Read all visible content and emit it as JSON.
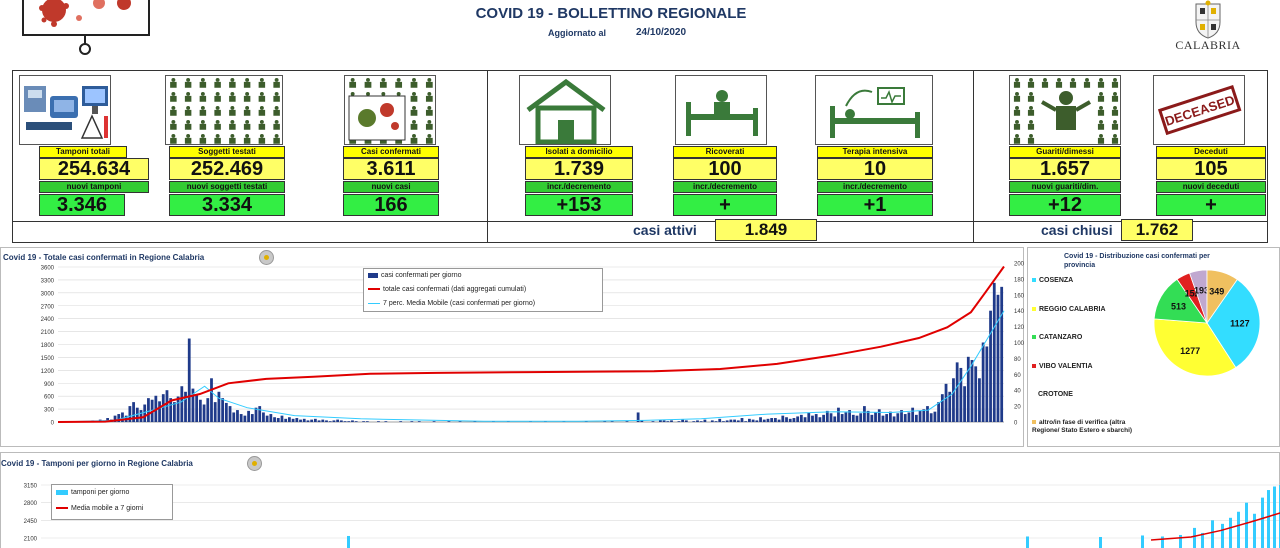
{
  "header": {
    "title": "COVID 19 - BOLLETTINO REGIONALE",
    "updated_label": "Aggiornato al",
    "updated_date": "24/10/2020",
    "region_name": "CALABRIA"
  },
  "kpis": {
    "tamponi": {
      "label": "Tamponi totali",
      "value": "254.634",
      "new_label": "nuovi tamponi",
      "new_value": "3.346"
    },
    "soggetti": {
      "label": "Soggetti testati",
      "value": "252.469",
      "new_label": "nuovi soggetti testati",
      "new_value": "3.334"
    },
    "casi": {
      "label": "Casi confermati",
      "value": "3.611",
      "new_label": "nuovi casi",
      "new_value": "166"
    },
    "isolati": {
      "label": "Isolati a domicilio",
      "value": "1.739",
      "new_label": "incr./decremento",
      "new_value": "+153"
    },
    "ricoverati": {
      "label": "Ricoverati",
      "value": "100",
      "new_label": "incr./decremento",
      "new_value": "+"
    },
    "terapia": {
      "label": "Terapia intensiva",
      "value": "10",
      "new_label": "incr./decremento",
      "new_value": "+1"
    },
    "guariti": {
      "label": "Guariti/dimessi",
      "value": "1.657",
      "new_label": "nuovi guariti/dim.",
      "new_value": "+12"
    },
    "deceduti": {
      "label": "Deceduti",
      "value": "105",
      "new_label": "nuovi deceduti",
      "new_value": "+"
    },
    "attivi": {
      "label": "casi attivi",
      "value": "1.849"
    },
    "chiusi": {
      "label": "casi chiusi",
      "value": "1.762"
    },
    "deceased_stamp": "DECEASED"
  },
  "colors": {
    "title": "#1f3864",
    "yellow": "#ffff00",
    "green": "#33cc33",
    "bar": "#1f3a8a",
    "cumulative": "#e00000",
    "moving_avg": "#33ccff"
  },
  "icons": [
    "lab-icon",
    "people-grid-icon",
    "virus-icon",
    "house-icon",
    "hospital-bed-icon",
    "icu-bed-icon",
    "recovered-person-icon",
    "deceased-stamp-icon",
    "region-seal-icon"
  ],
  "chart_data": [
    {
      "type": "bar",
      "title": "Covid 19 - Totale casi confermati in Regione Calabria",
      "y_left_ticks": [
        "3600",
        "3300",
        "3000",
        "2700",
        "2400",
        "2100",
        "1800",
        "1500",
        "1200",
        "900",
        "600",
        "300",
        "0"
      ],
      "y_right_ticks": [
        "200",
        "180",
        "160",
        "140",
        "120",
        "100",
        "80",
        "60",
        "40",
        "20",
        "0"
      ],
      "ylim_left": [
        0,
        3600
      ],
      "ylim_right": [
        0,
        200
      ],
      "legend_placement": "top-center",
      "series": [
        {
          "name": "casi confermati per giorno",
          "style": "bars",
          "axis": "right",
          "values": [
            0,
            0,
            0,
            0,
            0,
            0,
            0,
            0,
            0,
            2,
            1,
            3,
            2,
            5,
            3,
            8,
            10,
            12,
            8,
            20,
            25,
            18,
            15,
            22,
            30,
            28,
            33,
            26,
            35,
            40,
            30,
            25,
            32,
            45,
            38,
            105,
            42,
            35,
            28,
            22,
            30,
            55,
            25,
            38,
            30,
            24,
            20,
            12,
            15,
            10,
            8,
            14,
            10,
            18,
            20,
            12,
            8,
            10,
            6,
            5,
            8,
            4,
            6,
            4,
            5,
            3,
            4,
            2,
            3,
            4,
            2,
            3,
            2,
            1,
            2,
            3,
            2,
            1,
            1,
            2,
            1,
            0,
            1,
            1,
            0,
            0,
            1,
            0,
            1,
            0,
            0,
            0,
            1,
            0,
            0,
            1,
            0,
            1,
            0,
            0,
            0,
            1,
            0,
            0,
            0,
            1,
            0,
            0,
            1,
            0,
            0,
            0,
            1,
            0,
            0,
            0,
            0,
            1,
            0,
            0,
            0,
            1,
            0,
            0,
            0,
            0,
            0,
            1,
            0,
            0,
            0,
            1,
            0,
            0,
            0,
            0,
            1,
            0,
            0,
            0,
            0,
            0,
            1,
            0,
            0,
            0,
            0,
            1,
            0,
            1,
            0,
            0,
            0,
            1,
            0,
            0,
            12,
            2,
            0,
            0,
            1,
            0,
            3,
            2,
            1,
            2,
            0,
            1,
            3,
            2,
            0,
            1,
            2,
            1,
            3,
            0,
            2,
            1,
            4,
            1,
            2,
            3,
            3,
            2,
            5,
            1,
            4,
            3,
            2,
            6,
            3,
            4,
            5,
            5,
            3,
            8,
            6,
            4,
            5,
            7,
            9,
            6,
            12,
            8,
            10,
            6,
            9,
            14,
            11,
            7,
            18,
            10,
            12,
            15,
            9,
            8,
            11,
            20,
            14,
            9,
            12,
            16,
            8,
            10,
            13,
            7,
            11,
            15,
            10,
            12,
            18,
            9,
            14,
            16,
            20,
            11,
            13,
            25,
            35,
            48,
            38,
            55,
            75,
            68,
            45,
            82,
            78,
            70,
            55,
            100,
            95,
            140,
            175,
            160,
            170
          ]
        },
        {
          "name": "totale casi confermati (dati aggregati cumulati)",
          "style": "line",
          "axis": "left",
          "points": [
            [
              0,
              0
            ],
            [
              0.05,
              10
            ],
            [
              0.09,
              110
            ],
            [
              0.12,
              500
            ],
            [
              0.15,
              650
            ],
            [
              0.18,
              900
            ],
            [
              0.22,
              1000
            ],
            [
              0.27,
              1050
            ],
            [
              0.33,
              1120
            ],
            [
              0.4,
              1140
            ],
            [
              0.5,
              1160
            ],
            [
              0.57,
              1170
            ],
            [
              0.63,
              1180
            ],
            [
              0.7,
              1230
            ],
            [
              0.76,
              1350
            ],
            [
              0.82,
              1550
            ],
            [
              0.87,
              1750
            ],
            [
              0.91,
              1950
            ],
            [
              0.94,
              2200
            ],
            [
              0.965,
              2550
            ],
            [
              0.98,
              3000
            ],
            [
              1.0,
              3611
            ]
          ]
        },
        {
          "name": "7 perc. Media Mobile (casi confermati per giorno)",
          "style": "line",
          "axis": "right",
          "points": [
            [
              0,
              0
            ],
            [
              0.06,
              2
            ],
            [
              0.1,
              15
            ],
            [
              0.13,
              25
            ],
            [
              0.155,
              45
            ],
            [
              0.17,
              30
            ],
            [
              0.2,
              18
            ],
            [
              0.25,
              8
            ],
            [
              0.32,
              4
            ],
            [
              0.45,
              1
            ],
            [
              0.55,
              1
            ],
            [
              0.62,
              2
            ],
            [
              0.68,
              4
            ],
            [
              0.75,
              10
            ],
            [
              0.82,
              13
            ],
            [
              0.88,
              12
            ],
            [
              0.92,
              15
            ],
            [
              0.945,
              35
            ],
            [
              0.965,
              70
            ],
            [
              0.98,
              100
            ],
            [
              1.0,
              140
            ]
          ]
        }
      ]
    },
    {
      "type": "pie",
      "title": "Covid 19 - Distribuzione casi confermati per provincia",
      "slices": [
        {
          "label": "COSENZA",
          "value": 1127,
          "color": "#33ddff"
        },
        {
          "label": "REGGIO CALABRIA",
          "value": 1277,
          "color": "#ffff33"
        },
        {
          "label": "CATANZARO",
          "value": 513,
          "color": "#33dd55"
        },
        {
          "label": "VIBO VALENTIA",
          "value": 152,
          "color": "#e02020"
        },
        {
          "label": "CROTONE",
          "value": 193,
          "color": "#c0a8d0"
        },
        {
          "label": "altro/in fase di verifica (altra Regione/ Stato Estero e sbarchi)",
          "value": 349,
          "color": "#f0c060"
        }
      ],
      "legend_placement": "left"
    },
    {
      "type": "bar",
      "title": "Covid 19 - Tamponi per giorno in Regione Calabria",
      "y_ticks": [
        "3150",
        "2800",
        "2450",
        "2100"
      ],
      "ylim_visible": [
        2100,
        3150
      ],
      "legend_placement": "top-left",
      "series": [
        {
          "name": "tamponi per giorno",
          "style": "bars"
        },
        {
          "name": "Media mobile a 7 giorni",
          "style": "line"
        }
      ]
    }
  ]
}
